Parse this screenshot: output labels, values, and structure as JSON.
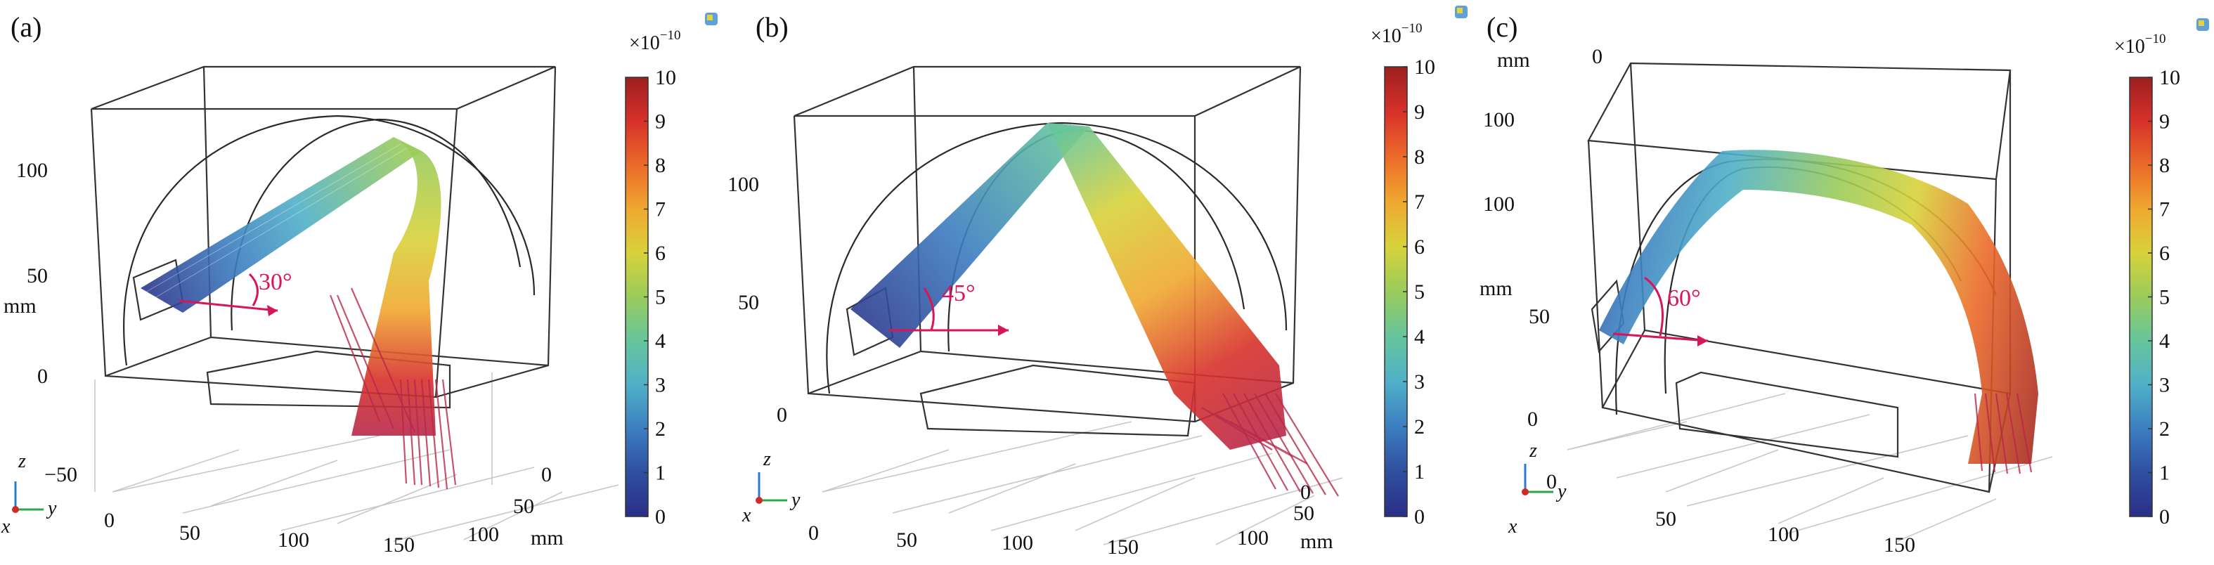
{
  "colors": {
    "colormap": [
      "#2a2e86",
      "#2f4f9f",
      "#3c7ec0",
      "#4fb0c8",
      "#66c59c",
      "#9acb5b",
      "#d8d23a",
      "#f0a830",
      "#ec6a2a",
      "#d7312a",
      "#9c1f1f"
    ],
    "ray_end": "#b8284a",
    "angle_marker": "#d8145a"
  },
  "panels": [
    {
      "id": "a",
      "label": "(a)",
      "angle_label": "30°",
      "vertical_unit": "mm",
      "horizontal_unit": "mm",
      "vertical_ticks": [
        "100",
        "50",
        "0",
        "−50"
      ],
      "front_ticks": [
        "0",
        "50",
        "100",
        "150"
      ],
      "side_ticks": [
        "0",
        "50",
        "100"
      ],
      "colorbar": {
        "exponent": "×10",
        "exponent_power": "−10",
        "ticks": [
          "10",
          "9",
          "8",
          "7",
          "6",
          "5",
          "4",
          "3",
          "2",
          "1",
          "0"
        ]
      },
      "axes_labels": {
        "x": "x",
        "y": "y",
        "z": "z"
      }
    },
    {
      "id": "b",
      "label": "(b)",
      "angle_label": "45°",
      "vertical_unit": "mm",
      "horizontal_unit": "mm",
      "vertical_ticks": [
        "100",
        "50",
        "0"
      ],
      "front_ticks": [
        "0",
        "50",
        "100",
        "150"
      ],
      "side_ticks": [
        "0",
        "50",
        "100"
      ],
      "colorbar": {
        "exponent": "×10",
        "exponent_power": "−10",
        "ticks": [
          "10",
          "9",
          "8",
          "7",
          "6",
          "5",
          "4",
          "3",
          "2",
          "1",
          "0"
        ]
      },
      "axes_labels": {
        "x": "x",
        "y": "y",
        "z": "z"
      }
    },
    {
      "id": "c",
      "label": "(c)",
      "angle_label": "60°",
      "vertical_unit": "mm",
      "horizontal_unit": "mm",
      "vertical_ticks": [
        "100",
        "50",
        "0"
      ],
      "front_ticks": [
        "0",
        "50",
        "100",
        "150"
      ],
      "side_ticks": [
        "0"
      ],
      "colorbar": {
        "exponent": "×10",
        "exponent_power": "−10",
        "ticks": [
          "10",
          "9",
          "8",
          "7",
          "6",
          "5",
          "4",
          "3",
          "2",
          "1",
          "0"
        ]
      },
      "axes_labels": {
        "x": "x",
        "y": "y",
        "z": "z"
      }
    }
  ]
}
